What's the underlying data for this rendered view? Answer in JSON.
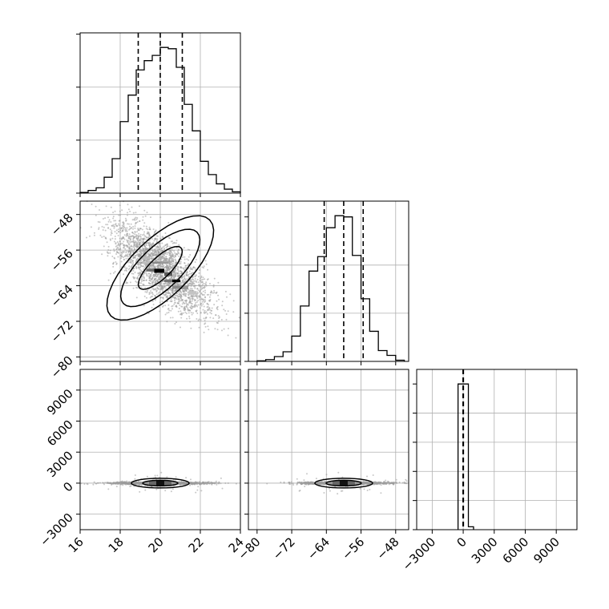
{
  "chart_data": [
    {
      "type": "histogram",
      "panel": "diagonal-1",
      "xlim": [
        16,
        24
      ],
      "bins": [
        16.0,
        16.4,
        16.8,
        17.2,
        17.6,
        18.0,
        18.4,
        18.8,
        19.2,
        19.6,
        20.0,
        20.4,
        20.8,
        21.2,
        21.6,
        22.0,
        22.4,
        22.8,
        23.2,
        23.6,
        24.0
      ],
      "counts": [
        0.5,
        2,
        4,
        12,
        26,
        54,
        74,
        93,
        100,
        104,
        110,
        109,
        95,
        67,
        47,
        24,
        14,
        7,
        3,
        1
      ],
      "quantiles": [
        18.9,
        20.0,
        21.1
      ]
    },
    {
      "type": "scatter-contour",
      "panel": "row2-col1",
      "xlim": [
        16,
        24
      ],
      "ylim": [
        -81,
        -45
      ],
      "ytick_labels": [
        "-80",
        "-72",
        "-64",
        "-56",
        "-48"
      ],
      "ytick_values": [
        -80,
        -72,
        -64,
        -56,
        -48
      ],
      "center": [
        20.0,
        -60.0
      ],
      "contour_levels": [
        0.39,
        0.86,
        1.0
      ]
    },
    {
      "type": "histogram",
      "panel": "diagonal-2",
      "xlim": [
        -82,
        -45
      ],
      "bins": [
        -80,
        -78,
        -76,
        -74,
        -72,
        -70,
        -68,
        -66,
        -64,
        -62,
        -60,
        -58,
        -56,
        -54,
        -52,
        -50,
        -48,
        -46
      ],
      "counts": [
        0.5,
        1.5,
        4,
        8,
        21,
        46,
        75,
        87,
        111,
        121,
        120,
        88,
        52,
        25,
        9,
        5,
        1
      ],
      "quantiles": [
        -64.5,
        -60.0,
        -55.5
      ]
    },
    {
      "type": "scatter-contour",
      "panel": "row3-col1",
      "xlim": [
        16,
        24
      ],
      "ylim": [
        -4500,
        11000
      ],
      "ytick_labels": [
        "-3000",
        "0",
        "3000",
        "6000",
        "9000"
      ],
      "ytick_values": [
        -3000,
        0,
        3000,
        6000,
        9000
      ],
      "xtick_labels": [
        "16",
        "18",
        "20",
        "22",
        "24"
      ],
      "xtick_values": [
        16,
        18,
        20,
        22,
        24
      ]
    },
    {
      "type": "scatter-contour",
      "panel": "row3-col2",
      "xlim": [
        -82,
        -45
      ],
      "ylim": [
        -4500,
        11000
      ],
      "xtick_labels": [
        "-80",
        "-72",
        "-64",
        "-56",
        "-48"
      ],
      "xtick_values": [
        -80,
        -72,
        -64,
        -56,
        -48
      ]
    },
    {
      "type": "histogram",
      "panel": "diagonal-3",
      "xlim": [
        -4500,
        11000
      ],
      "xtick_labels": [
        "-3000",
        "0",
        "3000",
        "6000",
        "9000"
      ],
      "xtick_values": [
        -3000,
        0,
        3000,
        6000,
        9000
      ],
      "bins": [
        -500,
        0,
        500,
        1000
      ],
      "counts": [
        100,
        100,
        2
      ],
      "quantiles": [
        -20,
        0,
        20
      ]
    }
  ]
}
